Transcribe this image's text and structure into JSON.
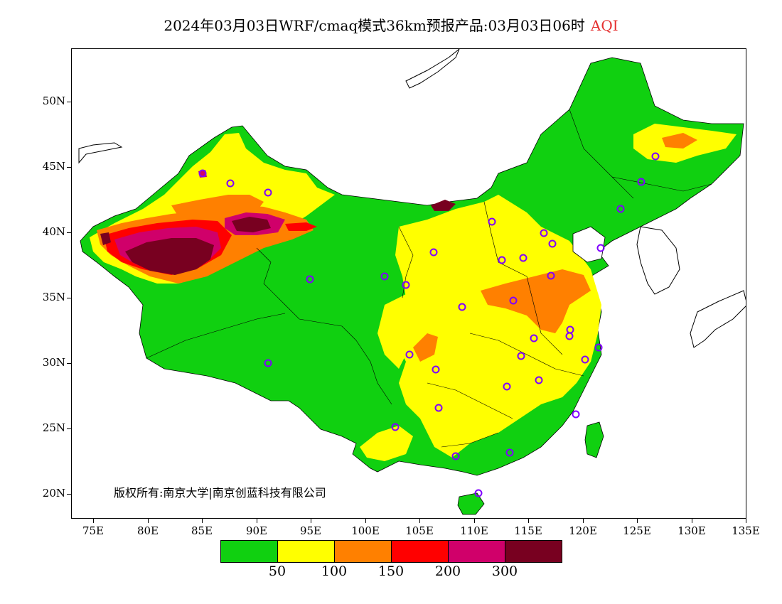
{
  "title": {
    "main": "2024年03月03日WRF/cmaq模式36km预报产品:03月03日06时",
    "variable": "AQI"
  },
  "copyright": "版权所有:南京大学|南京创蓝科技有限公司",
  "axes": {
    "x_ticks": [
      {
        "label": "75E",
        "lon": 75
      },
      {
        "label": "80E",
        "lon": 80
      },
      {
        "label": "85E",
        "lon": 85
      },
      {
        "label": "90E",
        "lon": 90
      },
      {
        "label": "95E",
        "lon": 95
      },
      {
        "label": "100E",
        "lon": 100
      },
      {
        "label": "105E",
        "lon": 105
      },
      {
        "label": "110E",
        "lon": 110
      },
      {
        "label": "115E",
        "lon": 115
      },
      {
        "label": "120E",
        "lon": 120
      },
      {
        "label": "125E",
        "lon": 125
      },
      {
        "label": "130E",
        "lon": 130
      },
      {
        "label": "135E",
        "lon": 135
      }
    ],
    "y_ticks": [
      {
        "label": "50N",
        "lat": 50
      },
      {
        "label": "45N",
        "lat": 45
      },
      {
        "label": "40N",
        "lat": 40
      },
      {
        "label": "35N",
        "lat": 35
      },
      {
        "label": "30N",
        "lat": 30
      },
      {
        "label": "25N",
        "lat": 25
      },
      {
        "label": "20N",
        "lat": 20
      }
    ]
  },
  "legend": {
    "colors": [
      "#10d010",
      "#ffff00",
      "#ff8000",
      "#ff0000",
      "#d0006a",
      "#780020"
    ],
    "labels": [
      "50",
      "100",
      "150",
      "200",
      "300"
    ]
  },
  "colors": {
    "good": "#10d010",
    "moderate": "#ffff00",
    "usg": "#ff8000",
    "unhealthy": "#ff0000",
    "very_unhealthy": "#d0006a",
    "hazardous": "#780020",
    "station_marker": "#8000ff"
  }
}
